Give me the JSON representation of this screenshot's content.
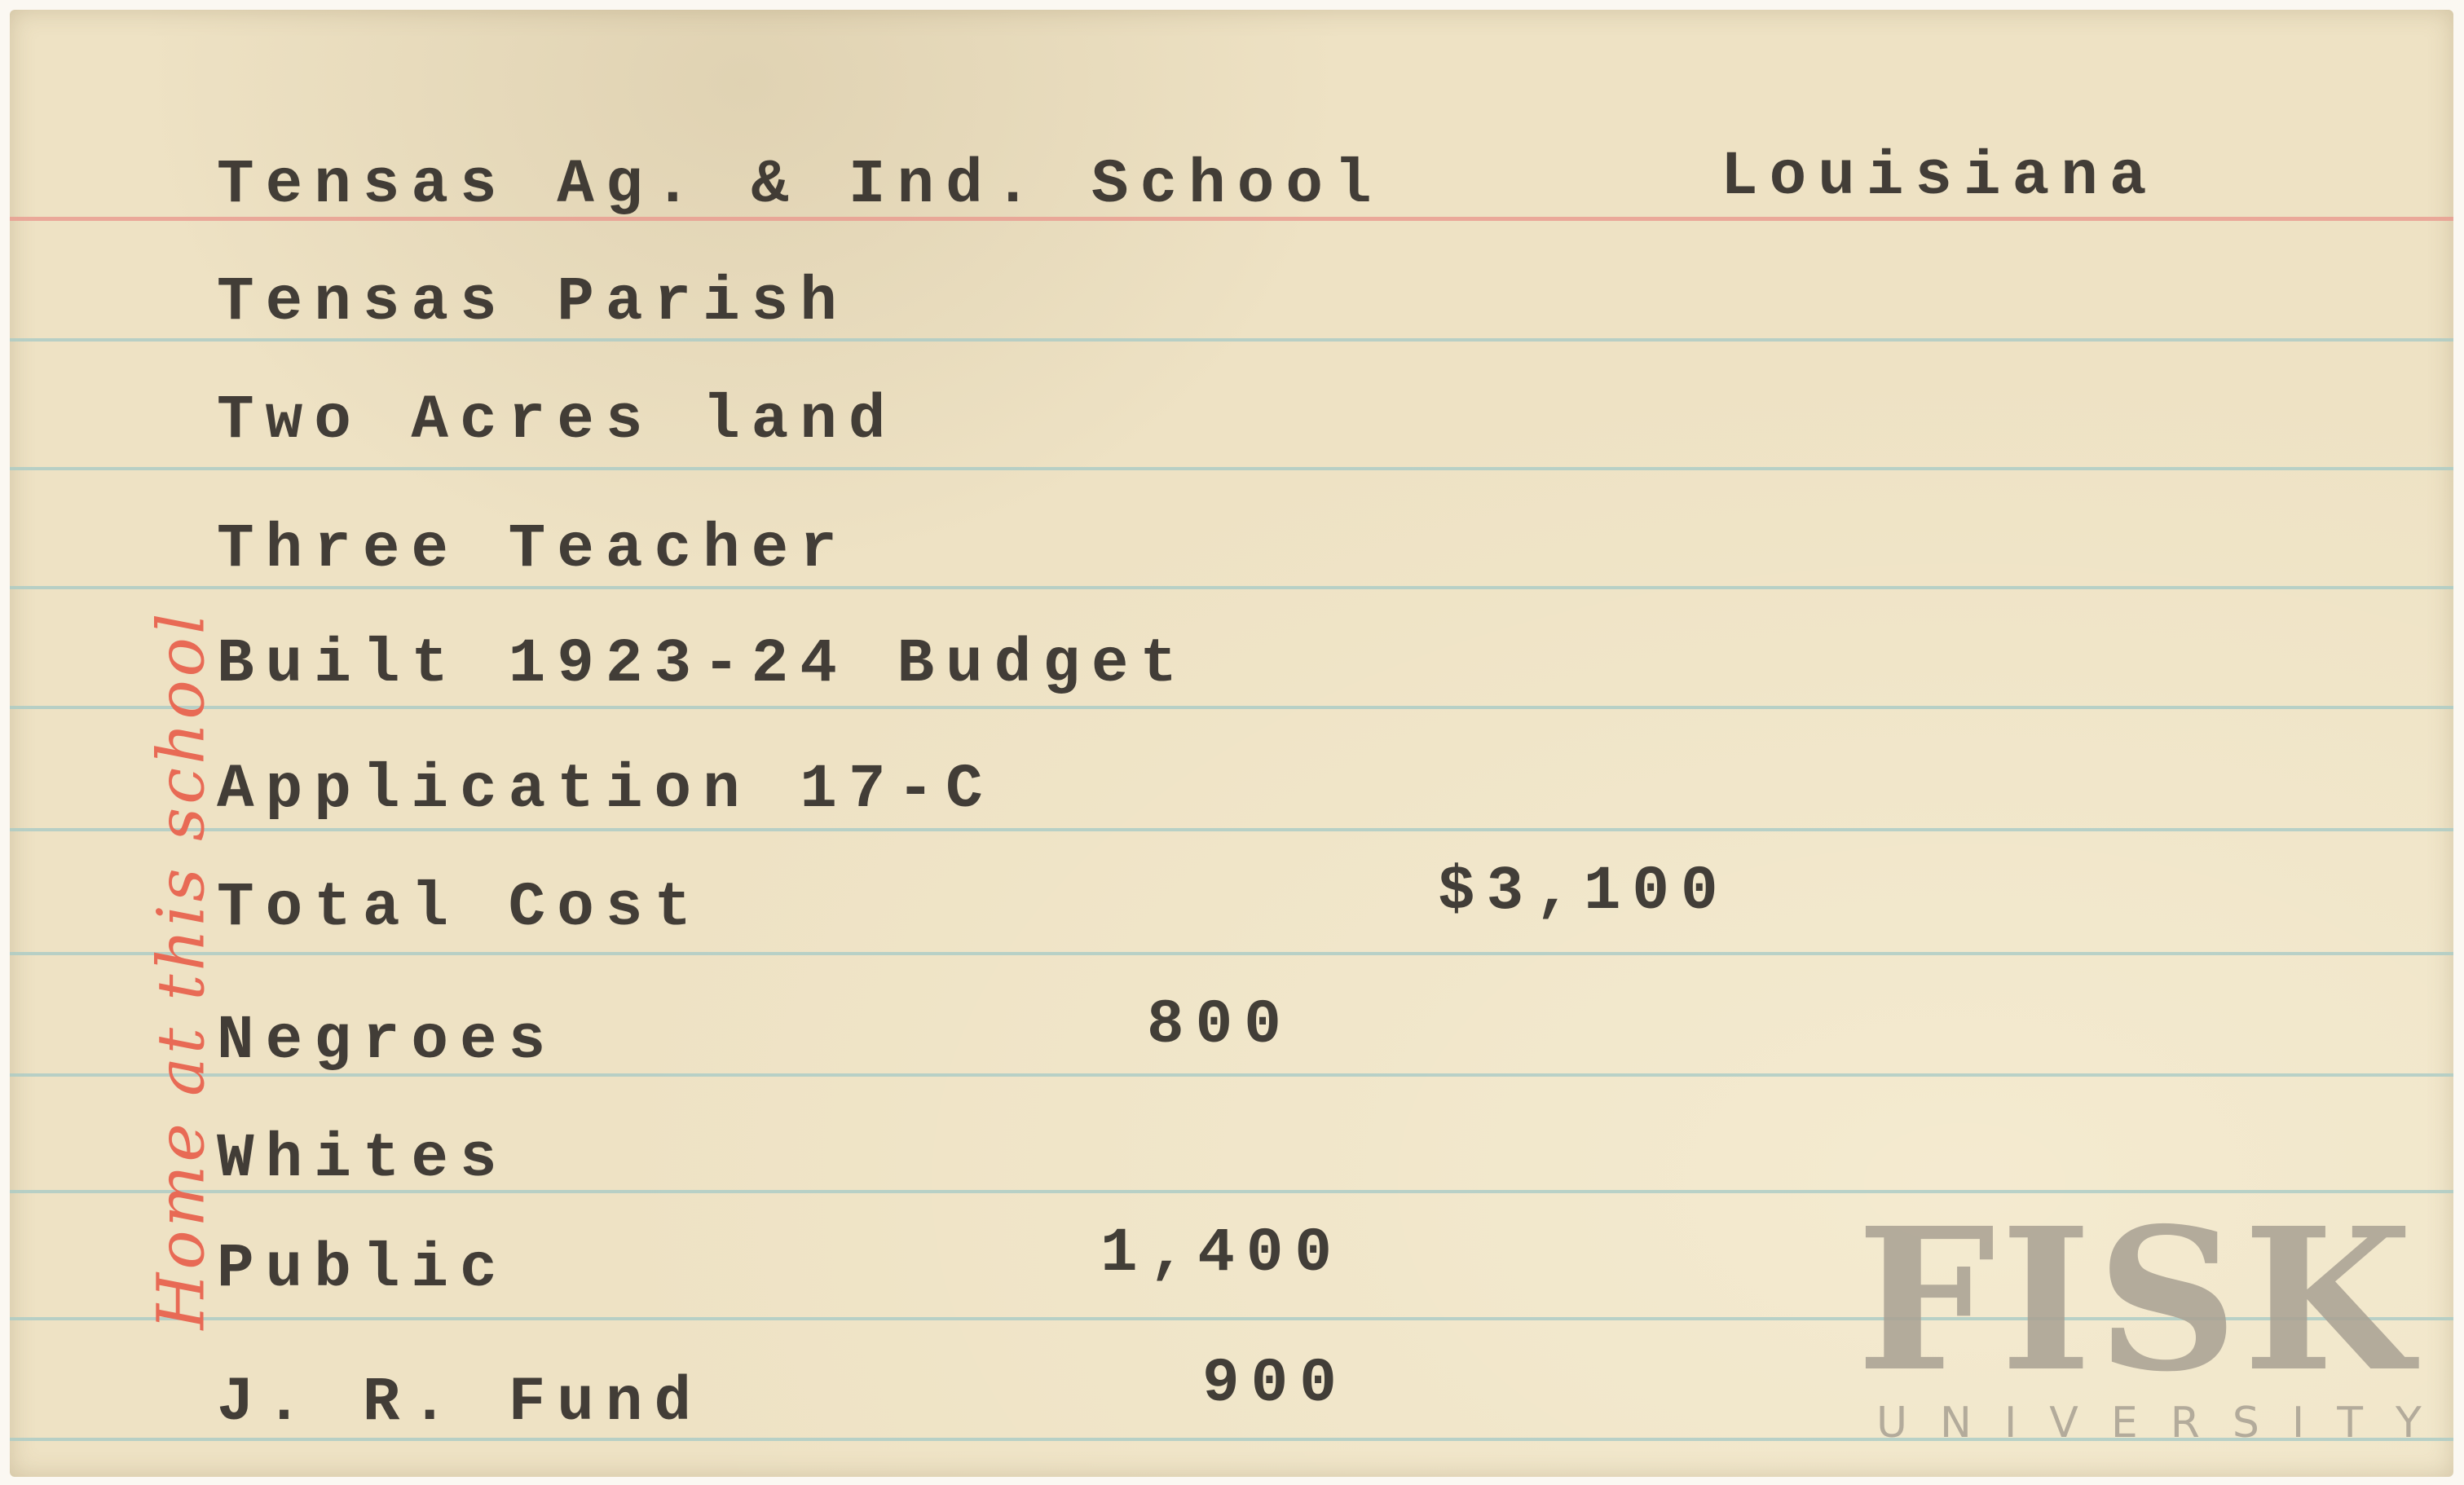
{
  "card": {
    "header": {
      "school": "Tensas Ag. & Ind. School",
      "state": "Louisiana"
    },
    "lines": [
      "Tensas Parish",
      "Two Acres land",
      "Three Teacher",
      "Built 1923-24 Budget",
      "Application 17-C"
    ],
    "costs": {
      "total_label": "Total Cost",
      "total_value": "$3,100",
      "negroes_label": "Negroes",
      "negroes_value": "800",
      "whites_label": "Whites",
      "public_label": "Public",
      "public_value": "1,400",
      "fund_label": "J. R. Fund",
      "fund_value": "900"
    },
    "handwritten_note": "Home at this school"
  },
  "watermark": {
    "name": "FISK",
    "subtitle": "UNIVERSITY"
  },
  "colors": {
    "paper": "#eee2c4",
    "red_rule": "#e89a8e",
    "blue_rule": "#a9cac6",
    "ink": "#2b2724",
    "pencil_red": "#e86a55"
  }
}
